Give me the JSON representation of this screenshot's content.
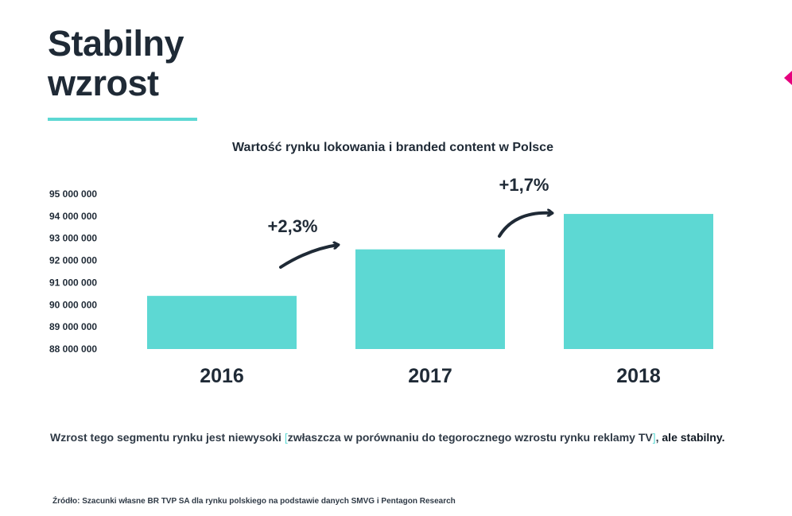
{
  "slide": {
    "title_line1": "Stabilny",
    "title_line2": "wzrost",
    "accent_color": "#5dd8d3",
    "marker_color": "#e6007e"
  },
  "chart_data": {
    "type": "bar",
    "title": "Wartość rynku lokowania i branded content w Polsce",
    "categories": [
      "2016",
      "2017",
      "2018"
    ],
    "values": [
      90400000,
      92500000,
      94100000
    ],
    "ylim": [
      88000000,
      95000000
    ],
    "yticks": [
      95000000,
      94000000,
      93000000,
      92000000,
      91000000,
      90000000,
      89000000,
      88000000
    ],
    "ytick_labels": [
      "95 000 000",
      "94 000 000",
      "93 000 000",
      "92 000 000",
      "91 000 000",
      "90 000 000",
      "89 000 000",
      "88 000 000"
    ],
    "grid": false,
    "bar_color": "#5dd8d3",
    "annotations": [
      {
        "text": "+2,3%",
        "between": [
          "2016",
          "2017"
        ]
      },
      {
        "text": "+1,7%",
        "between": [
          "2017",
          "2018"
        ]
      }
    ]
  },
  "description": {
    "text_start": "Wzrost tego segmentu rynku jest niewysoki ",
    "bracket_open": "[",
    "bracket_text": "zwłaszcza w porównaniu do tegorocznego wzrostu rynku reklamy TV",
    "bracket_close": "]",
    "text_after": ", ",
    "text_end": "ale stabilny."
  },
  "source": "Źródło: Szacunki własne BR TVP SA dla rynku polskiego na podstawie danych SMVG i Pentagon Research"
}
